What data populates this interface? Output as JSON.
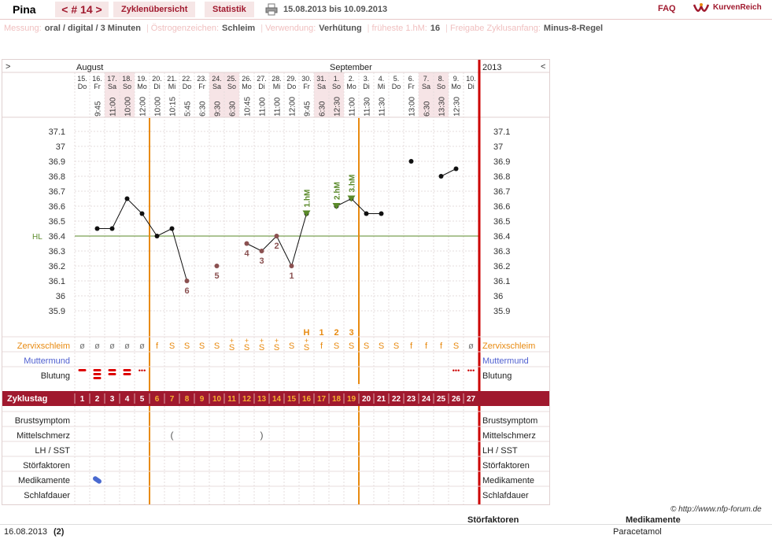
{
  "topbar": {
    "user": "Pina",
    "cycle": "< # 14 >",
    "tab_overview": "Zyklenübersicht",
    "tab_stats": "Statistik",
    "date_range": "15.08.2013 bis 10.09.2013",
    "faq": "FAQ",
    "logo": "KurvenReich"
  },
  "info": [
    {
      "key": "Messung:",
      "value": "oral / digital / 3 Minuten"
    },
    {
      "key": "Östrogenzeichen:",
      "value": "Schleim"
    },
    {
      "key": "Verwendung:",
      "value": "Verhütung"
    },
    {
      "key": "früheste 1.hM:",
      "value": "16"
    },
    {
      "key": "Freigabe Zyklusanfang:",
      "value": "Minus-8-Regel"
    }
  ],
  "chart": {
    "nav_left": ">",
    "nav_right": "<",
    "month1": "August",
    "month2": "September",
    "year": "2013",
    "hl_label": "HL",
    "hl_value": 36.4,
    "ylim": [
      35.9,
      37.1
    ],
    "yticks": [
      "37.1",
      "37",
      "36.9",
      "36.8",
      "36.7",
      "36.6",
      "36.5",
      "36.4",
      "36.3",
      "36.2",
      "36.1",
      "36",
      "35.9"
    ],
    "days": [
      {
        "d": "15.",
        "w": "Do",
        "t": ""
      },
      {
        "d": "16.",
        "w": "Fr",
        "t": "9:45"
      },
      {
        "d": "17.",
        "w": "Sa",
        "t": "11:00"
      },
      {
        "d": "18.",
        "w": "So",
        "t": "10:00"
      },
      {
        "d": "19.",
        "w": "Mo",
        "t": "12:00"
      },
      {
        "d": "20.",
        "w": "Di",
        "t": "10:00"
      },
      {
        "d": "21.",
        "w": "Mi",
        "t": "10:15"
      },
      {
        "d": "22.",
        "w": "Do",
        "t": "5:45"
      },
      {
        "d": "23.",
        "w": "Fr",
        "t": "6:30"
      },
      {
        "d": "24.",
        "w": "Sa",
        "t": "9:30"
      },
      {
        "d": "25.",
        "w": "So",
        "t": "6:30"
      },
      {
        "d": "26.",
        "w": "Mo",
        "t": "10:45"
      },
      {
        "d": "27.",
        "w": "Di",
        "t": "11:00"
      },
      {
        "d": "28.",
        "w": "Mi",
        "t": "11:00"
      },
      {
        "d": "29.",
        "w": "Do",
        "t": "12:00"
      },
      {
        "d": "30.",
        "w": "Fr",
        "t": "9:45"
      },
      {
        "d": "31.",
        "w": "Sa",
        "t": "6:30"
      },
      {
        "d": "1.",
        "w": "So",
        "t": "12:30"
      },
      {
        "d": "2.",
        "w": "Mo",
        "t": "11:00"
      },
      {
        "d": "3.",
        "w": "Di",
        "t": "11:30"
      },
      {
        "d": "4.",
        "w": "Mi",
        "t": "11:30"
      },
      {
        "d": "5.",
        "w": "Do",
        "t": ""
      },
      {
        "d": "6.",
        "w": "Fr",
        "t": "13:00"
      },
      {
        "d": "7.",
        "w": "Sa",
        "t": "6:30"
      },
      {
        "d": "8.",
        "w": "So",
        "t": "13:30"
      },
      {
        "d": "9.",
        "w": "Mo",
        "t": "12:30"
      },
      {
        "d": "10.",
        "w": "Di",
        "t": ""
      }
    ],
    "weekend_cols": [
      2,
      3,
      9,
      10,
      16,
      17,
      23,
      24
    ],
    "temps": [
      null,
      36.45,
      36.45,
      36.65,
      36.55,
      36.4,
      36.45,
      36.1,
      null,
      36.2,
      null,
      36.35,
      36.3,
      36.4,
      36.2,
      36.55,
      null,
      36.6,
      36.65,
      36.55,
      36.55,
      null,
      36.9,
      null,
      36.8,
      36.85,
      null
    ],
    "excluded": [
      7,
      9,
      11,
      12,
      13,
      14
    ],
    "segments": [
      [
        1,
        7
      ],
      [
        11,
        15
      ],
      [
        17,
        20
      ],
      [
        24,
        25
      ]
    ],
    "markers": [
      {
        "col": 15,
        "label": "1.hM"
      },
      {
        "col": 17,
        "label": "2.hM"
      },
      {
        "col": 18,
        "label": "3.hM"
      }
    ],
    "low_labels": [
      {
        "col": 7,
        "label": "6"
      },
      {
        "col": 9,
        "label": "5"
      },
      {
        "col": 11,
        "label": "4"
      },
      {
        "col": 12,
        "label": "3"
      },
      {
        "col": 13,
        "label": "2"
      },
      {
        "col": 14,
        "label": "1"
      }
    ],
    "peak_labels": [
      {
        "col": 15,
        "label": "H"
      },
      {
        "col": 16,
        "label": "1"
      },
      {
        "col": 17,
        "label": "2"
      },
      {
        "col": 18,
        "label": "3"
      }
    ],
    "mucus": [
      "ø",
      "ø",
      "ø",
      "ø",
      "ø",
      "f",
      "S",
      "S",
      "S",
      "S",
      "S+",
      "S+",
      "S+",
      "S+",
      "S",
      "S+",
      "f",
      "S",
      "S",
      "S",
      "S",
      "S",
      "f",
      "f",
      "f",
      "S",
      "ø"
    ],
    "bleeding": [
      "heavy1",
      "heavy3",
      "heavy2",
      "heavy2",
      "spot",
      "",
      "",
      "",
      "",
      "",
      "",
      "",
      "",
      "",
      "",
      "",
      "",
      "",
      "",
      "",
      "",
      "",
      "",
      "",
      "",
      "spot",
      "spot"
    ],
    "cycle_days": [
      "1",
      "2",
      "3",
      "4",
      "5",
      "6",
      "7",
      "8",
      "9",
      "10",
      "11",
      "12",
      "13",
      "14",
      "15",
      "16",
      "17",
      "18",
      "19",
      "20",
      "21",
      "22",
      "23",
      "24",
      "25",
      "26",
      "27"
    ],
    "mittelschmerz": [
      {
        "col": 6,
        "sym": "("
      },
      {
        "col": 12,
        "sym": ")"
      }
    ],
    "medication_col": 1,
    "colors": {
      "accent": "#a0192e",
      "orange": "#e88a10",
      "green": "#5a8a2a",
      "weekend": "#f6e4e6"
    }
  },
  "rows": {
    "mucus": "Zervixschleim",
    "cervix": "Muttermund",
    "bleeding": "Blutung",
    "cycleday": "Zyklustag",
    "breast": "Brustsymptom",
    "midpain": "Mittelschmerz",
    "lh": "LH / SST",
    "disturb": "Störfaktoren",
    "meds": "Medikamente",
    "sleep": "Schlafdauer"
  },
  "credit": "© http://www.nfp-forum.de",
  "bottom": {
    "h_disturb": "Störfaktoren",
    "h_meds": "Medikamente",
    "date": "16.08.2013",
    "num": "(2)",
    "med": "Paracetamol"
  }
}
